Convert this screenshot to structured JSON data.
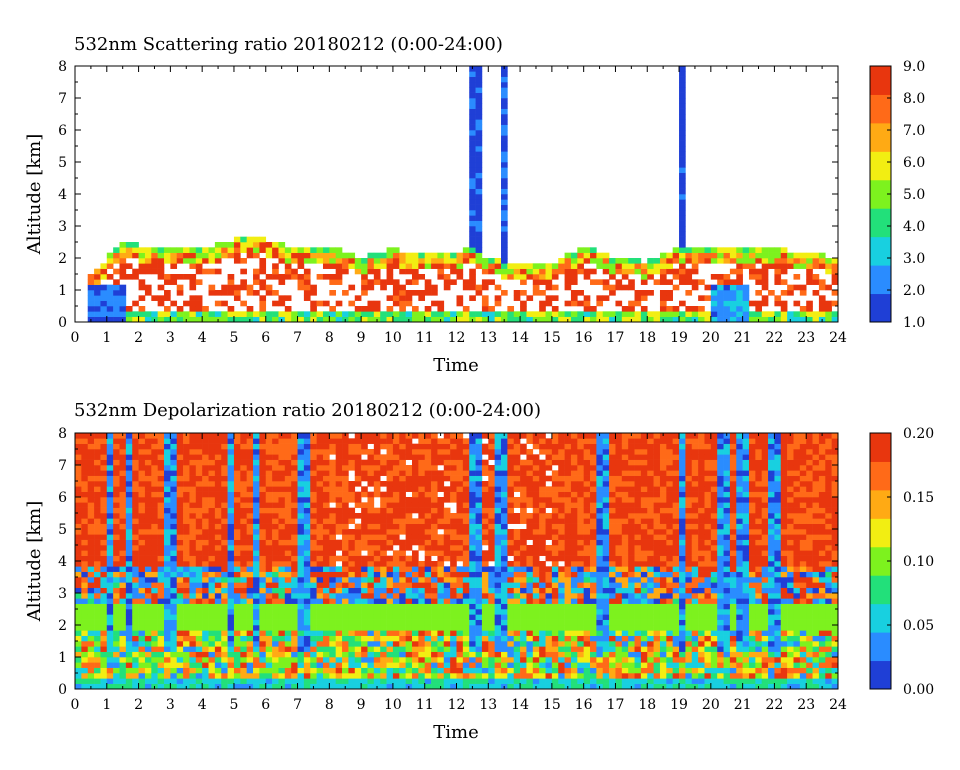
{
  "chart_data": [
    {
      "type": "heatmap",
      "title": "532nm Scattering ratio  20180212 (0:00-24:00)",
      "xlabel": "Time",
      "ylabel": "Altitude [km]",
      "xlim": [
        0,
        24
      ],
      "ylim": [
        0,
        8
      ],
      "x_ticks": [
        "0",
        "1",
        "2",
        "3",
        "4",
        "5",
        "6",
        "7",
        "8",
        "9",
        "10",
        "11",
        "12",
        "13",
        "14",
        "15",
        "16",
        "17",
        "18",
        "19",
        "20",
        "21",
        "22",
        "23",
        "24"
      ],
      "y_ticks": [
        "0",
        "1",
        "2",
        "3",
        "4",
        "5",
        "6",
        "7",
        "8"
      ],
      "colorbar": {
        "range": [
          1.0,
          9.0
        ],
        "ticks": [
          "1.0",
          "2.0",
          "3.0",
          "4.0",
          "5.0",
          "6.0",
          "7.0",
          "8.0",
          "9.0"
        ],
        "colors": [
          "#1f3fd6",
          "#2a8cff",
          "#18d0e0",
          "#22e07a",
          "#7df21e",
          "#f2ee12",
          "#ffaa14",
          "#ff6a18",
          "#e8360e"
        ]
      },
      "description_layers": {
        "cloud_top_km": [
          [
            0.3,
            1.4
          ],
          [
            1.0,
            2.0
          ],
          [
            1.5,
            2.5
          ],
          [
            2,
            2.4
          ],
          [
            3,
            2.4
          ],
          [
            4,
            2.3
          ],
          [
            5,
            2.6
          ],
          [
            6,
            2.6
          ],
          [
            7,
            2.3
          ],
          [
            8,
            2.4
          ],
          [
            9,
            2.0
          ],
          [
            10,
            2.3
          ],
          [
            11,
            2.1
          ],
          [
            12,
            2.2
          ],
          [
            12.5,
            2.4
          ],
          [
            13,
            2.0
          ],
          [
            14,
            1.8
          ],
          [
            15,
            1.8
          ],
          [
            16,
            2.4
          ],
          [
            17,
            2.0
          ],
          [
            18,
            1.9
          ],
          [
            19,
            2.4
          ],
          [
            20,
            2.4
          ],
          [
            21,
            2.3
          ],
          [
            22,
            2.3
          ],
          [
            23,
            2.2
          ],
          [
            24,
            2.0
          ]
        ],
        "plume_columns_hours": [
          12.6,
          13.5,
          19.1
        ]
      }
    },
    {
      "type": "heatmap",
      "title": "532nm Depolarization ratio  20180212 (0:00-24:00)",
      "xlabel": "Time",
      "ylabel": "Altitude [km]",
      "xlim": [
        0,
        24
      ],
      "ylim": [
        0,
        8
      ],
      "x_ticks": [
        "0",
        "1",
        "2",
        "3",
        "4",
        "5",
        "6",
        "7",
        "8",
        "9",
        "10",
        "11",
        "12",
        "13",
        "14",
        "15",
        "16",
        "17",
        "18",
        "19",
        "20",
        "21",
        "22",
        "23",
        "24"
      ],
      "y_ticks": [
        "0",
        "1",
        "2",
        "3",
        "4",
        "5",
        "6",
        "7",
        "8"
      ],
      "colorbar": {
        "range": [
          0.0,
          0.2
        ],
        "ticks": [
          "0.00",
          "0.05",
          "0.10",
          "0.15",
          "0.20"
        ],
        "colors": [
          "#1f3fd6",
          "#2a8cff",
          "#18d0e0",
          "#22e07a",
          "#7df21e",
          "#f2ee12",
          "#ffaa14",
          "#ff6a18",
          "#e8360e"
        ]
      },
      "description_layers": {
        "low_columns_hours": [
          1.1,
          1.7,
          3.0,
          4.9,
          5.7,
          7.2,
          12.6,
          13.4,
          16.6,
          19.1,
          20.4,
          21.0,
          22.0
        ]
      }
    }
  ]
}
